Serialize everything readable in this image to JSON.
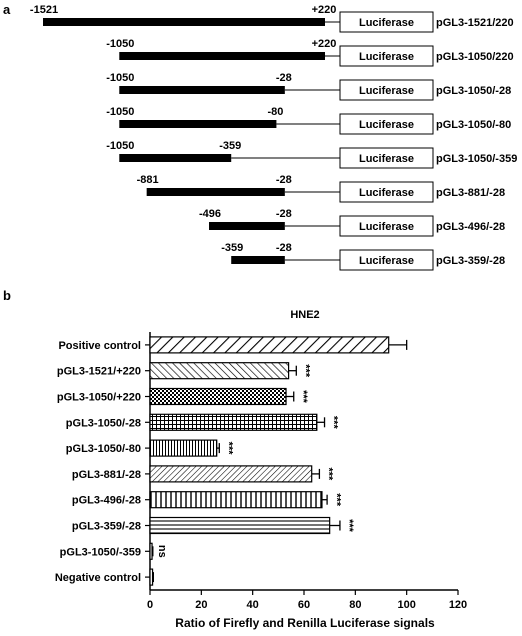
{
  "panel_a": {
    "label": "a",
    "constructs": [
      {
        "start_label": "-1521",
        "end_label": "+220",
        "start": -1521,
        "end": 220,
        "box_label": "Luciferase",
        "name": "pGL3-1521/220"
      },
      {
        "start_label": "-1050",
        "end_label": "+220",
        "start": -1050,
        "end": 220,
        "box_label": "Luciferase",
        "name": "pGL3-1050/220"
      },
      {
        "start_label": "-1050",
        "end_label": "-28",
        "start": -1050,
        "end": -28,
        "box_label": "Luciferase",
        "name": "pGL3-1050/-28"
      },
      {
        "start_label": "-1050",
        "end_label": "-80",
        "start": -1050,
        "end": -80,
        "box_label": "Luciferase",
        "name": "pGL3-1050/-80"
      },
      {
        "start_label": "-1050",
        "end_label": "-359",
        "start": -1050,
        "end": -359,
        "box_label": "Luciferase",
        "name": "pGL3-1050/-359"
      },
      {
        "start_label": "-881",
        "end_label": "-28",
        "start": -881,
        "end": -28,
        "box_label": "Luciferase",
        "name": "pGL3-881/-28"
      },
      {
        "start_label": "-496",
        "end_label": "-28",
        "start": -496,
        "end": -28,
        "box_label": "Luciferase",
        "name": "pGL3-496/-28"
      },
      {
        "start_label": "-359",
        "end_label": "-28",
        "start": -359,
        "end": -28,
        "box_label": "Luciferase",
        "name": "pGL3-359/-28"
      }
    ]
  },
  "panel_b": {
    "label": "b"
  },
  "chart_data": {
    "type": "bar",
    "orientation": "horizontal",
    "title": "HNE2",
    "xlabel": "Ratio of Firefly and Renilla  Luciferase signals",
    "ylabel": "",
    "xlim": [
      0,
      120
    ],
    "xticks": [
      "0",
      "20",
      "40",
      "60",
      "80",
      "100",
      "120"
    ],
    "grid": false,
    "categories": [
      "Positive control",
      "pGL3-1521/+220",
      "pGL3-1050/+220",
      "pGL3-1050/-28",
      "pGL3-1050/-80",
      "pGL3-881/-28",
      "pGL3-496/-28",
      "pGL3-359/-28",
      "pGL3-1050/-359",
      "Negative control"
    ],
    "values": [
      93,
      54,
      53,
      65,
      26,
      63,
      67,
      70,
      0.8,
      1
    ],
    "errors": [
      7,
      3,
      3,
      3,
      1,
      3,
      2,
      4,
      0.3,
      0.3
    ],
    "patterns": [
      "diag-wide",
      "diag-back",
      "checker",
      "grid",
      "vert-fine",
      "diag-fine",
      "vert",
      "horiz",
      "none",
      "none"
    ],
    "annotations": [
      "",
      "***",
      "***",
      "***",
      "***",
      "***",
      "***",
      "***",
      "ns",
      ""
    ]
  }
}
